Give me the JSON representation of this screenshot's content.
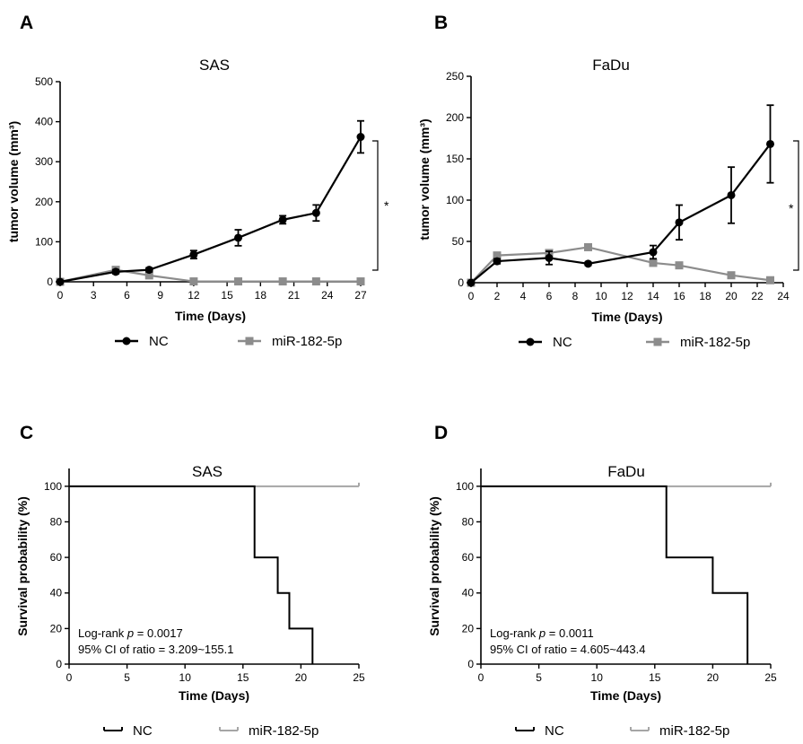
{
  "figure": {
    "letters": [
      "A",
      "B",
      "C",
      "D"
    ]
  },
  "chart_data": [
    {
      "panel": "A",
      "type": "line",
      "title": "SAS",
      "xlabel": "Time (Days)",
      "ylabel": "tumor volume (mm³)",
      "xticks": [
        0,
        3,
        6,
        9,
        12,
        15,
        18,
        21,
        24,
        27
      ],
      "yticks": [
        0,
        100,
        200,
        300,
        400,
        500
      ],
      "xlim": [
        0,
        27
      ],
      "ylim": [
        0,
        500
      ],
      "significance": "*",
      "series": [
        {
          "name": "NC",
          "color": "#000000",
          "marker": "circle",
          "x": [
            0,
            5,
            8,
            12,
            16,
            20,
            23,
            27
          ],
          "y": [
            0,
            25,
            30,
            68,
            110,
            155,
            172,
            362
          ],
          "err": [
            0,
            5,
            5,
            10,
            20,
            10,
            20,
            40
          ]
        },
        {
          "name": "miR-182-5p",
          "color": "#8c8c8c",
          "marker": "square",
          "x": [
            0,
            5,
            8,
            12,
            16,
            20,
            23,
            27
          ],
          "y": [
            0,
            30,
            16,
            1,
            1,
            1,
            1,
            1
          ],
          "err": [
            0,
            4,
            3,
            0,
            0,
            0,
            0,
            0
          ]
        }
      ],
      "legend": [
        "NC",
        "miR-182-5p"
      ]
    },
    {
      "panel": "B",
      "type": "line",
      "title": "FaDu",
      "xlabel": "Time (Days)",
      "ylabel": "tumor volume (mm³)",
      "xticks": [
        0,
        2,
        4,
        6,
        8,
        10,
        12,
        14,
        16,
        18,
        20,
        22,
        24
      ],
      "yticks": [
        0,
        50,
        100,
        150,
        200,
        250
      ],
      "xlim": [
        0,
        24
      ],
      "ylim": [
        0,
        250
      ],
      "significance": "*",
      "series": [
        {
          "name": "NC",
          "color": "#000000",
          "marker": "circle",
          "x": [
            0,
            2,
            6,
            9,
            14,
            16,
            20,
            23
          ],
          "y": [
            0,
            26,
            30,
            23,
            37,
            73,
            106,
            168
          ],
          "err": [
            0,
            3,
            8,
            2,
            8,
            21,
            34,
            47
          ]
        },
        {
          "name": "miR-182-5p",
          "color": "#8c8c8c",
          "marker": "square",
          "x": [
            0,
            2,
            6,
            9,
            14,
            16,
            20,
            23
          ],
          "y": [
            0,
            33,
            36,
            43,
            24,
            21,
            9,
            3
          ],
          "err": [
            0,
            3,
            3,
            2,
            3,
            2,
            2,
            1
          ]
        }
      ],
      "legend": [
        "NC",
        "miR-182-5p"
      ]
    },
    {
      "panel": "C",
      "type": "line",
      "subtype": "kaplan-meier",
      "title": "SAS",
      "xlabel": "Time (Days)",
      "ylabel": "Survival probability (%)",
      "xticks": [
        0,
        5,
        10,
        15,
        20,
        25
      ],
      "yticks": [
        0,
        20,
        40,
        60,
        80,
        100
      ],
      "xlim": [
        0,
        25
      ],
      "ylim": [
        0,
        110
      ],
      "annotation_prefix": "Log-rank ",
      "annotation_p": "p",
      "annotation_value": " = 0.0017",
      "annotation_line2": "95% CI of ratio = 3.209~155.1",
      "series": [
        {
          "name": "NC",
          "color": "#000000",
          "steps": [
            [
              0,
              100
            ],
            [
              16,
              100
            ],
            [
              16,
              60
            ],
            [
              18,
              60
            ],
            [
              18,
              40
            ],
            [
              19,
              40
            ],
            [
              19,
              20
            ],
            [
              21,
              20
            ],
            [
              21,
              0
            ]
          ]
        },
        {
          "name": "miR-182-5p",
          "color": "#a6a6a6",
          "steps": [
            [
              0,
              100
            ],
            [
              25,
              100
            ]
          ]
        }
      ],
      "legend": [
        "NC",
        "miR-182-5p"
      ]
    },
    {
      "panel": "D",
      "type": "line",
      "subtype": "kaplan-meier",
      "title": "FaDu",
      "xlabel": "Time (Days)",
      "ylabel": "Survival probability (%)",
      "xticks": [
        0,
        5,
        10,
        15,
        20,
        25
      ],
      "yticks": [
        0,
        20,
        40,
        60,
        80,
        100
      ],
      "xlim": [
        0,
        25
      ],
      "ylim": [
        0,
        110
      ],
      "annotation_prefix": "Log-rank ",
      "annotation_p": "p",
      "annotation_value": " = 0.0011",
      "annotation_line2": "95% CI of ratio = 4.605~443.4",
      "series": [
        {
          "name": "NC",
          "color": "#000000",
          "steps": [
            [
              0,
              100
            ],
            [
              16,
              100
            ],
            [
              16,
              60
            ],
            [
              20,
              60
            ],
            [
              20,
              40
            ],
            [
              23,
              40
            ],
            [
              23,
              0
            ]
          ]
        },
        {
          "name": "miR-182-5p",
          "color": "#a6a6a6",
          "steps": [
            [
              0,
              100
            ],
            [
              25,
              100
            ]
          ]
        }
      ],
      "legend": [
        "NC",
        "miR-182-5p"
      ]
    }
  ]
}
